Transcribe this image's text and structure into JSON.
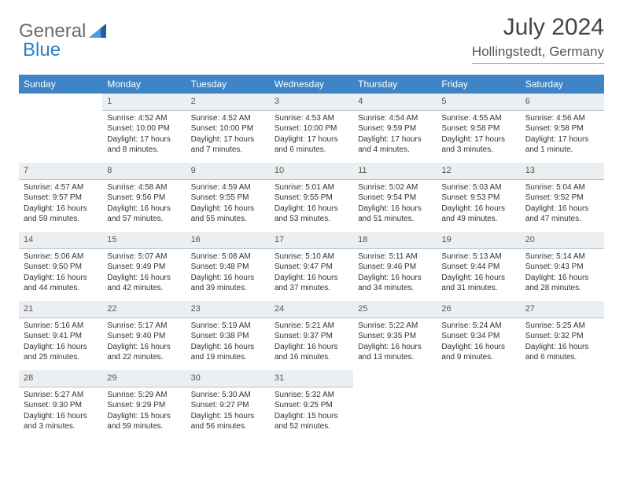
{
  "logo": {
    "part1": "General",
    "part2": "Blue"
  },
  "title": "July 2024",
  "location": "Hollingstedt, Germany",
  "header_bg": "#3d85c6",
  "header_fg": "#ffffff",
  "daynum_bg": "#eceff1",
  "daynum_border": "#b8c2cc",
  "brand_gray": "#6b6b6b",
  "brand_blue": "#2a7fc9",
  "weekdays": [
    "Sunday",
    "Monday",
    "Tuesday",
    "Wednesday",
    "Thursday",
    "Friday",
    "Saturday"
  ],
  "first_day_index": 1,
  "days": [
    {
      "n": 1,
      "sunrise": "4:52 AM",
      "sunset": "10:00 PM",
      "daylight": "17 hours and 8 minutes."
    },
    {
      "n": 2,
      "sunrise": "4:52 AM",
      "sunset": "10:00 PM",
      "daylight": "17 hours and 7 minutes."
    },
    {
      "n": 3,
      "sunrise": "4:53 AM",
      "sunset": "10:00 PM",
      "daylight": "17 hours and 6 minutes."
    },
    {
      "n": 4,
      "sunrise": "4:54 AM",
      "sunset": "9:59 PM",
      "daylight": "17 hours and 4 minutes."
    },
    {
      "n": 5,
      "sunrise": "4:55 AM",
      "sunset": "9:58 PM",
      "daylight": "17 hours and 3 minutes."
    },
    {
      "n": 6,
      "sunrise": "4:56 AM",
      "sunset": "9:58 PM",
      "daylight": "17 hours and 1 minute."
    },
    {
      "n": 7,
      "sunrise": "4:57 AM",
      "sunset": "9:57 PM",
      "daylight": "16 hours and 59 minutes."
    },
    {
      "n": 8,
      "sunrise": "4:58 AM",
      "sunset": "9:56 PM",
      "daylight": "16 hours and 57 minutes."
    },
    {
      "n": 9,
      "sunrise": "4:59 AM",
      "sunset": "9:55 PM",
      "daylight": "16 hours and 55 minutes."
    },
    {
      "n": 10,
      "sunrise": "5:01 AM",
      "sunset": "9:55 PM",
      "daylight": "16 hours and 53 minutes."
    },
    {
      "n": 11,
      "sunrise": "5:02 AM",
      "sunset": "9:54 PM",
      "daylight": "16 hours and 51 minutes."
    },
    {
      "n": 12,
      "sunrise": "5:03 AM",
      "sunset": "9:53 PM",
      "daylight": "16 hours and 49 minutes."
    },
    {
      "n": 13,
      "sunrise": "5:04 AM",
      "sunset": "9:52 PM",
      "daylight": "16 hours and 47 minutes."
    },
    {
      "n": 14,
      "sunrise": "5:06 AM",
      "sunset": "9:50 PM",
      "daylight": "16 hours and 44 minutes."
    },
    {
      "n": 15,
      "sunrise": "5:07 AM",
      "sunset": "9:49 PM",
      "daylight": "16 hours and 42 minutes."
    },
    {
      "n": 16,
      "sunrise": "5:08 AM",
      "sunset": "9:48 PM",
      "daylight": "16 hours and 39 minutes."
    },
    {
      "n": 17,
      "sunrise": "5:10 AM",
      "sunset": "9:47 PM",
      "daylight": "16 hours and 37 minutes."
    },
    {
      "n": 18,
      "sunrise": "5:11 AM",
      "sunset": "9:46 PM",
      "daylight": "16 hours and 34 minutes."
    },
    {
      "n": 19,
      "sunrise": "5:13 AM",
      "sunset": "9:44 PM",
      "daylight": "16 hours and 31 minutes."
    },
    {
      "n": 20,
      "sunrise": "5:14 AM",
      "sunset": "9:43 PM",
      "daylight": "16 hours and 28 minutes."
    },
    {
      "n": 21,
      "sunrise": "5:16 AM",
      "sunset": "9:41 PM",
      "daylight": "16 hours and 25 minutes."
    },
    {
      "n": 22,
      "sunrise": "5:17 AM",
      "sunset": "9:40 PM",
      "daylight": "16 hours and 22 minutes."
    },
    {
      "n": 23,
      "sunrise": "5:19 AM",
      "sunset": "9:38 PM",
      "daylight": "16 hours and 19 minutes."
    },
    {
      "n": 24,
      "sunrise": "5:21 AM",
      "sunset": "9:37 PM",
      "daylight": "16 hours and 16 minutes."
    },
    {
      "n": 25,
      "sunrise": "5:22 AM",
      "sunset": "9:35 PM",
      "daylight": "16 hours and 13 minutes."
    },
    {
      "n": 26,
      "sunrise": "5:24 AM",
      "sunset": "9:34 PM",
      "daylight": "16 hours and 9 minutes."
    },
    {
      "n": 27,
      "sunrise": "5:25 AM",
      "sunset": "9:32 PM",
      "daylight": "16 hours and 6 minutes."
    },
    {
      "n": 28,
      "sunrise": "5:27 AM",
      "sunset": "9:30 PM",
      "daylight": "16 hours and 3 minutes."
    },
    {
      "n": 29,
      "sunrise": "5:29 AM",
      "sunset": "9:29 PM",
      "daylight": "15 hours and 59 minutes."
    },
    {
      "n": 30,
      "sunrise": "5:30 AM",
      "sunset": "9:27 PM",
      "daylight": "15 hours and 56 minutes."
    },
    {
      "n": 31,
      "sunrise": "5:32 AM",
      "sunset": "9:25 PM",
      "daylight": "15 hours and 52 minutes."
    }
  ],
  "labels": {
    "sunrise": "Sunrise:",
    "sunset": "Sunset:",
    "daylight": "Daylight:"
  }
}
